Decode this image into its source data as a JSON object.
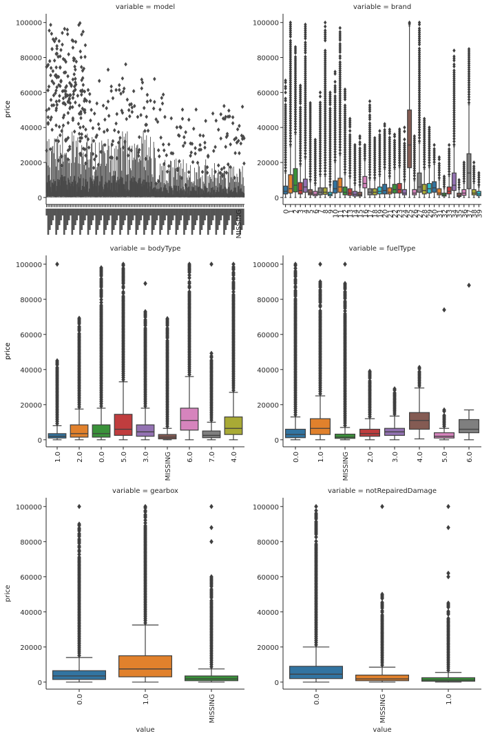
{
  "figure": {
    "ylabel": "price",
    "xlabel": "value"
  },
  "chart_data": [
    {
      "type": "box",
      "title": "variable = model",
      "ylabel": "price",
      "xlabel": "",
      "ylim": [
        -4000,
        105000
      ],
      "yticks": [
        0,
        20000,
        40000,
        60000,
        80000,
        100000
      ],
      "categories_note": "~248 overlapping model codes; labels illegible",
      "category_count": 248,
      "color": "#4a4a4a",
      "visible_labels": [
        "MISSING"
      ],
      "median": 3000,
      "box_range": [
        600,
        10000
      ],
      "upper_whisker_range": [
        20000,
        47000
      ],
      "outlier_max": 100000
    },
    {
      "type": "box",
      "title": "variable = brand",
      "ylabel": "price",
      "xlabel": "",
      "ylim": [
        -4000,
        105000
      ],
      "yticks": [
        0,
        20000,
        40000,
        60000,
        80000,
        100000
      ],
      "categories": [
        "0",
        "1",
        "2",
        "3",
        "4",
        "5",
        "6",
        "7",
        "8",
        "9",
        "10",
        "11",
        "12",
        "13",
        "14",
        "15",
        "16",
        "17",
        "18",
        "19",
        "20",
        "21",
        "22",
        "23",
        "24",
        "25",
        "26",
        "27",
        "28",
        "29",
        "30",
        "31",
        "32",
        "33",
        "34",
        "35",
        "36",
        "37",
        "38",
        "39"
      ],
      "boxes": [
        {
          "q1": 2000,
          "med": 3500,
          "q3": 6500,
          "whi": 14000,
          "omax": 68000
        },
        {
          "q1": 2500,
          "med": 5000,
          "q3": 13000,
          "whi": 29000,
          "omax": 100000
        },
        {
          "q1": 3200,
          "med": 7000,
          "q3": 16500,
          "whi": 36000,
          "omax": 86000
        },
        {
          "q1": 2000,
          "med": 4000,
          "q3": 8500,
          "whi": 18000,
          "omax": 64000
        },
        {
          "q1": 3000,
          "med": 6000,
          "q3": 10500,
          "whi": 22000,
          "omax": 100000
        },
        {
          "q1": 1500,
          "med": 2500,
          "q3": 4500,
          "whi": 9000,
          "omax": 54000
        },
        {
          "q1": 1000,
          "med": 1800,
          "q3": 3500,
          "whi": 7000,
          "omax": 33000
        },
        {
          "q1": 1500,
          "med": 3000,
          "q3": 5500,
          "whi": 12000,
          "omax": 60000
        },
        {
          "q1": 1800,
          "med": 3000,
          "q3": 5500,
          "whi": 12000,
          "omax": 100000
        },
        {
          "q1": 1000,
          "med": 1800,
          "q3": 3000,
          "whi": 6000,
          "omax": 60000
        },
        {
          "q1": 2500,
          "med": 5000,
          "q3": 9500,
          "whi": 20000,
          "omax": 73000
        },
        {
          "q1": 3000,
          "med": 6000,
          "q3": 11000,
          "whi": 24000,
          "omax": 98000
        },
        {
          "q1": 1500,
          "med": 3000,
          "q3": 6000,
          "whi": 13000,
          "omax": 64000
        },
        {
          "q1": 1200,
          "med": 2500,
          "q3": 5000,
          "whi": 11000,
          "omax": 45000
        },
        {
          "q1": 800,
          "med": 1800,
          "q3": 3500,
          "whi": 7000,
          "omax": 30000
        },
        {
          "q1": 800,
          "med": 1500,
          "q3": 3000,
          "whi": 6000,
          "omax": 35000
        },
        {
          "q1": 5500,
          "med": 8000,
          "q3": 12000,
          "whi": 21000,
          "omax": 30000
        },
        {
          "q1": 1500,
          "med": 3000,
          "q3": 5000,
          "whi": 10000,
          "omax": 55000
        },
        {
          "q1": 1500,
          "med": 3000,
          "q3": 5000,
          "whi": 10000,
          "omax": 34000
        },
        {
          "q1": 2000,
          "med": 3500,
          "q3": 6000,
          "whi": 12000,
          "omax": 38000
        },
        {
          "q1": 2000,
          "med": 4000,
          "q3": 7500,
          "whi": 16000,
          "omax": 42000
        },
        {
          "q1": 2000,
          "med": 3000,
          "q3": 5500,
          "whi": 11000,
          "omax": 40000
        },
        {
          "q1": 2500,
          "med": 4500,
          "q3": 7500,
          "whi": 16000,
          "omax": 36000
        },
        {
          "q1": 2500,
          "med": 4500,
          "q3": 8000,
          "whi": 17000,
          "omax": 39000
        },
        {
          "q1": 1500,
          "med": 2500,
          "q3": 4500,
          "whi": 9000,
          "omax": 40000
        },
        {
          "q1": 17000,
          "med": 30000,
          "q3": 50000,
          "whi": 98000,
          "omax": 100000
        },
        {
          "q1": 1500,
          "med": 2500,
          "q3": 4500,
          "whi": 9500,
          "omax": 35000
        },
        {
          "q1": 3000,
          "med": 6000,
          "q3": 14000,
          "whi": 31000,
          "omax": 100000
        },
        {
          "q1": 2000,
          "med": 4000,
          "q3": 7500,
          "whi": 16000,
          "omax": 45000
        },
        {
          "q1": 2500,
          "med": 5000,
          "q3": 8000,
          "whi": 17000,
          "omax": 40000
        },
        {
          "q1": 3000,
          "med": 5500,
          "q3": 9000,
          "whi": 19000,
          "omax": 30000
        },
        {
          "q1": 1500,
          "med": 2500,
          "q3": 5000,
          "whi": 10000,
          "omax": 23000
        },
        {
          "q1": 800,
          "med": 1500,
          "q3": 2500,
          "whi": 5000,
          "omax": 12000
        },
        {
          "q1": 2000,
          "med": 3500,
          "q3": 6000,
          "whi": 12000,
          "omax": 30000
        },
        {
          "q1": 4000,
          "med": 7000,
          "q3": 14000,
          "whi": 29000,
          "omax": 84000
        },
        {
          "q1": 500,
          "med": 1200,
          "q3": 2500,
          "whi": 4500,
          "omax": 10000
        },
        {
          "q1": 1200,
          "med": 2500,
          "q3": 4500,
          "whi": 8000,
          "omax": 20000
        },
        {
          "q1": 5000,
          "med": 14000,
          "q3": 25000,
          "whi": 53000,
          "omax": 86000
        },
        {
          "q1": 1500,
          "med": 2500,
          "q3": 4500,
          "whi": 8000,
          "omax": 20000
        },
        {
          "q1": 1000,
          "med": 2000,
          "q3": 3500,
          "whi": 6000,
          "omax": 14000
        }
      ],
      "palette": [
        "#3274a1",
        "#e1812c",
        "#3a923a",
        "#c03d3e",
        "#9372b2",
        "#845b53",
        "#d684bd",
        "#7f7f7f",
        "#a9aa35",
        "#2ebece"
      ]
    },
    {
      "type": "box",
      "title": "variable = bodyType",
      "ylabel": "price",
      "xlabel": "",
      "ylim": [
        -4000,
        105000
      ],
      "yticks": [
        0,
        20000,
        40000,
        60000,
        80000,
        100000
      ],
      "categories": [
        "1.0",
        "2.0",
        "0.0",
        "5.0",
        "3.0",
        "MISSING",
        "6.0",
        "7.0",
        "4.0"
      ],
      "colors": [
        "#3274a1",
        "#e1812c",
        "#3a923a",
        "#c03d3e",
        "#9372b2",
        "#845b53",
        "#d684bd",
        "#7f7f7f",
        "#a9aa35"
      ],
      "boxes": [
        {
          "q1": 1000,
          "med": 2000,
          "q3": 3500,
          "wlo": 0,
          "whi": 8000,
          "omax": 45000,
          "extra": [
            100000
          ]
        },
        {
          "q1": 1500,
          "med": 3500,
          "q3": 8500,
          "wlo": 0,
          "whi": 17500,
          "omax": 70000
        },
        {
          "q1": 1500,
          "med": 3500,
          "q3": 8500,
          "wlo": 0,
          "whi": 18000,
          "omax": 98000
        },
        {
          "q1": 2500,
          "med": 6000,
          "q3": 14500,
          "wlo": 0,
          "whi": 33000,
          "omax": 100000
        },
        {
          "q1": 2000,
          "med": 4500,
          "q3": 8500,
          "wlo": 0,
          "whi": 18000,
          "omax": 73000,
          "extra": [
            89000
          ]
        },
        {
          "q1": 500,
          "med": 1500,
          "q3": 3000,
          "wlo": 0,
          "whi": 6500,
          "omax": 69000
        },
        {
          "q1": 5500,
          "med": 11000,
          "q3": 18000,
          "wlo": 0,
          "whi": 36000,
          "omax": 100000
        },
        {
          "q1": 1200,
          "med": 2500,
          "q3": 5000,
          "wlo": 0,
          "whi": 10000,
          "omax": 50000,
          "extra": [
            100000
          ]
        },
        {
          "q1": 3000,
          "med": 6500,
          "q3": 13000,
          "wlo": 0,
          "whi": 27000,
          "omax": 100000
        }
      ]
    },
    {
      "type": "box",
      "title": "variable = fuelType",
      "ylabel": "price",
      "xlabel": "",
      "ylim": [
        -4000,
        105000
      ],
      "yticks": [
        0,
        20000,
        40000,
        60000,
        80000,
        100000
      ],
      "categories": [
        "0.0",
        "1.0",
        "MISSING",
        "2.0",
        "3.0",
        "4.0",
        "5.0",
        "6.0"
      ],
      "colors": [
        "#3274a1",
        "#e1812c",
        "#3a923a",
        "#c03d3e",
        "#9372b2",
        "#845b53",
        "#d684bd",
        "#7f7f7f"
      ],
      "boxes": [
        {
          "q1": 1200,
          "med": 3000,
          "q3": 6000,
          "wlo": 0,
          "whi": 13000,
          "omax": 100000
        },
        {
          "q1": 3000,
          "med": 6500,
          "q3": 12000,
          "wlo": 0,
          "whi": 25000,
          "omax": 90000,
          "extra": [
            100000
          ]
        },
        {
          "q1": 800,
          "med": 1500,
          "q3": 3200,
          "wlo": 0,
          "whi": 7000,
          "omax": 89000,
          "extra": [
            100000
          ]
        },
        {
          "q1": 2000,
          "med": 3500,
          "q3": 6000,
          "wlo": 0,
          "whi": 12000,
          "omax": 39000
        },
        {
          "q1": 2500,
          "med": 4500,
          "q3": 6500,
          "wlo": 0,
          "whi": 13500,
          "omax": 29000
        },
        {
          "q1": 6000,
          "med": 11000,
          "q3": 15500,
          "wlo": 500,
          "whi": 29500,
          "omax": 42000
        },
        {
          "q1": 1000,
          "med": 2000,
          "q3": 4000,
          "wlo": 0,
          "whi": 6500,
          "omax": 17000,
          "extra": [
            74000
          ]
        },
        {
          "q1": 4000,
          "med": 6000,
          "q3": 11500,
          "wlo": 0,
          "whi": 17000,
          "omax": 17000,
          "extra": [
            88000
          ]
        }
      ]
    },
    {
      "type": "box",
      "title": "variable = gearbox",
      "ylabel": "price",
      "xlabel": "value",
      "ylim": [
        -4000,
        105000
      ],
      "yticks": [
        0,
        20000,
        40000,
        60000,
        80000,
        100000
      ],
      "categories": [
        "0.0",
        "1.0",
        "MISSING"
      ],
      "colors": [
        "#3274a1",
        "#e1812c",
        "#3a923a"
      ],
      "boxes": [
        {
          "q1": 1500,
          "med": 3500,
          "q3": 6500,
          "wlo": 0,
          "whi": 14000,
          "omax": 90000,
          "extra": [
            100000
          ]
        },
        {
          "q1": 3000,
          "med": 7500,
          "q3": 15000,
          "wlo": 0,
          "whi": 32500,
          "omax": 100000
        },
        {
          "q1": 800,
          "med": 1800,
          "q3": 3500,
          "wlo": 0,
          "whi": 7500,
          "omax": 60000,
          "extra": [
            80000,
            88000,
            100000
          ]
        }
      ]
    },
    {
      "type": "box",
      "title": "variable = notRepairedDamage",
      "ylabel": "",
      "xlabel": "value",
      "ylim": [
        -4000,
        105000
      ],
      "yticks": [
        0,
        20000,
        40000,
        60000,
        80000,
        100000
      ],
      "categories": [
        "0.0",
        "MISSING",
        "1.0"
      ],
      "colors": [
        "#3274a1",
        "#e1812c",
        "#3a923a"
      ],
      "boxes": [
        {
          "q1": 2000,
          "med": 4500,
          "q3": 9000,
          "wlo": 0,
          "whi": 20000,
          "omax": 100000
        },
        {
          "q1": 800,
          "med": 1800,
          "q3": 4000,
          "wlo": 0,
          "whi": 8500,
          "omax": 50000,
          "extra": [
            100000
          ]
        },
        {
          "q1": 500,
          "med": 1200,
          "q3": 2500,
          "wlo": 0,
          "whi": 5500,
          "omax": 45000,
          "extra": [
            60000,
            62000,
            88000,
            100000
          ]
        }
      ]
    }
  ]
}
